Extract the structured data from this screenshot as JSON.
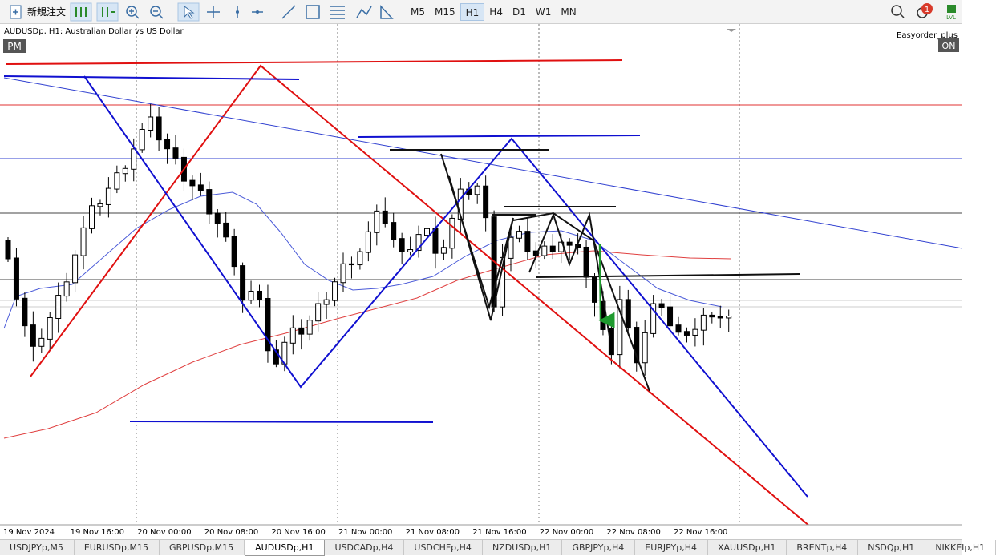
{
  "toolbar": {
    "new_order": "新規注文",
    "timeframes": [
      {
        "label": "M5"
      },
      {
        "label": "M15"
      },
      {
        "label": "H1",
        "active": true
      },
      {
        "label": "H4"
      },
      {
        "label": "D1"
      },
      {
        "label": "W1"
      },
      {
        "label": "MN"
      }
    ],
    "notifications": "1",
    "level_icon": "LVL"
  },
  "chart": {
    "symbol_label": "AUDUSDp, H1:  Australian Dollar vs US Dollar",
    "badge": "PM",
    "expert": "Easyorder_plus",
    "expert_badge": "ON",
    "x_labels": [
      "19 Nov 2024",
      "19 Nov 16:00",
      "20 Nov 00:00",
      "20 Nov 08:00",
      "20 Nov 16:00",
      "21 Nov 00:00",
      "21 Nov 08:00",
      "21 Nov 16:00",
      "22 Nov 00:00",
      "22 Nov 08:00",
      "22 Nov 16:00"
    ]
  },
  "tabs": [
    {
      "label": "USDJPYp,M5"
    },
    {
      "label": "EURUSDp,M15"
    },
    {
      "label": "GBPUSDp,M15"
    },
    {
      "label": "AUDUSDp,H1",
      "active": true
    },
    {
      "label": "USDCADp,H4"
    },
    {
      "label": "USDCHFp,H4"
    },
    {
      "label": "NZDUSDp,H1"
    },
    {
      "label": "GBPJPYp,H4"
    },
    {
      "label": "EURJPYp,H4"
    },
    {
      "label": "XAUUSDp,H1"
    },
    {
      "label": "BRENTp,H4"
    },
    {
      "label": "NSDQp,H1"
    },
    {
      "label": "NIKKEIp,H1"
    }
  ]
}
